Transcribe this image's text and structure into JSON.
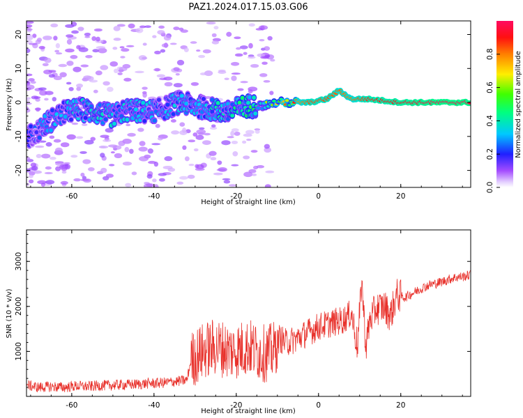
{
  "title": "PAZ1.2024.017.15.03.G06",
  "chart_data": [
    {
      "type": "heatmap",
      "xlabel": "Height of straight line (km)",
      "ylabel": "Frequency (Hz)",
      "xlim": [
        -71,
        37
      ],
      "ylim": [
        -25,
        24
      ],
      "xticks": [
        "-60",
        "-40",
        "-20",
        "0",
        "20"
      ],
      "yticks": [
        "-20",
        "-10",
        "0",
        "10",
        "20"
      ],
      "colorbar": {
        "label": "Normalized spectral amplitude",
        "range": [
          0,
          1
        ],
        "ticks": [
          "0.0",
          "0.2",
          "0.4",
          "0.6",
          "0.8"
        ],
        "colormap": "gist_rainbow_r"
      },
      "ridge": [
        {
          "x": -70,
          "f": -10,
          "a": 0.18
        },
        {
          "x": -66,
          "f": -6,
          "a": 0.25
        },
        {
          "x": -62,
          "f": -3,
          "a": 0.28
        },
        {
          "x": -58,
          "f": -2,
          "a": 0.3
        },
        {
          "x": -54,
          "f": -3,
          "a": 0.3
        },
        {
          "x": -50,
          "f": -4,
          "a": 0.32
        },
        {
          "x": -46,
          "f": -2,
          "a": 0.3
        },
        {
          "x": -42,
          "f": -3,
          "a": 0.28
        },
        {
          "x": -38,
          "f": -2,
          "a": 0.27
        },
        {
          "x": -34,
          "f": 0,
          "a": 0.28
        },
        {
          "x": -30,
          "f": -1,
          "a": 0.3
        },
        {
          "x": -26,
          "f": -2,
          "a": 0.32
        },
        {
          "x": -22,
          "f": -3,
          "a": 0.35
        },
        {
          "x": -18,
          "f": -1,
          "a": 0.38
        },
        {
          "x": -14,
          "f": -1,
          "a": 0.45
        },
        {
          "x": -10,
          "f": 0,
          "a": 0.55
        },
        {
          "x": -6,
          "f": 0,
          "a": 0.75
        },
        {
          "x": -2,
          "f": 0,
          "a": 0.85
        },
        {
          "x": 2,
          "f": 1,
          "a": 0.85
        },
        {
          "x": 5,
          "f": 3.5,
          "a": 0.82
        },
        {
          "x": 8,
          "f": 1,
          "a": 0.8
        },
        {
          "x": 12,
          "f": 1,
          "a": 0.88
        },
        {
          "x": 16,
          "f": 0.5,
          "a": 0.9
        },
        {
          "x": 20,
          "f": 0,
          "a": 0.92
        },
        {
          "x": 25,
          "f": 0,
          "a": 0.95
        },
        {
          "x": 30,
          "f": 0,
          "a": 0.97
        },
        {
          "x": 36,
          "f": 0,
          "a": 0.97
        }
      ]
    },
    {
      "type": "line",
      "xlabel": "Height of straight line (km)",
      "ylabel": "SNR (10 * v/v)",
      "xlim": [
        -71,
        37
      ],
      "ylim": [
        0,
        3700
      ],
      "xticks": [
        "-60",
        "-40",
        "-20",
        "0",
        "20"
      ],
      "yticks": [
        "1000",
        "2000",
        "3000"
      ],
      "color": "#e8322c",
      "series": [
        {
          "x": [
            -71,
            -68,
            -65,
            -62,
            -59,
            -56,
            -53,
            -50,
            -47,
            -44,
            -41,
            -38,
            -35,
            -32,
            -31,
            -29,
            -27,
            -25,
            -23,
            -21,
            -19,
            -17,
            -15,
            -13,
            -11,
            -9.5,
            -8,
            -6,
            -4,
            -2,
            0,
            2,
            4,
            6,
            8,
            9.5,
            10.5,
            11.5,
            12.5,
            14,
            16,
            17.5,
            19,
            21,
            23,
            25,
            27,
            29,
            31,
            33,
            35,
            37
          ],
          "y": [
            250,
            200,
            220,
            200,
            230,
            220,
            240,
            250,
            260,
            270,
            290,
            300,
            330,
            360,
            800,
            950,
            1050,
            1100,
            1050,
            1000,
            1050,
            1100,
            1000,
            950,
            1000,
            1300,
            1200,
            1250,
            1350,
            1450,
            1550,
            1600,
            1650,
            1700,
            1850,
            1100,
            2600,
            1100,
            1700,
            1950,
            2000,
            1800,
            2250,
            2200,
            2300,
            2400,
            2480,
            2520,
            2580,
            2640,
            2660,
            2700
          ]
        }
      ]
    }
  ]
}
